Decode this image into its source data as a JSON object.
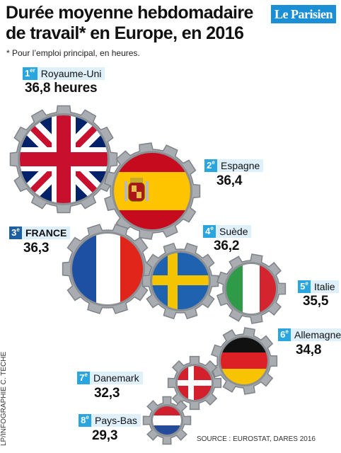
{
  "header": {
    "title": "Durée moyenne hebdomadaire de travail* en Europe, en 2016",
    "subtitle": "* Pour l’emploi principal, en heures.",
    "logo": "Le Parisien"
  },
  "countries": [
    {
      "rank_num": "1",
      "rank_sup": "er",
      "name": "Royaume-Uni",
      "value": "36,8 heures",
      "hours": 36.8,
      "flag": "uk-flag"
    },
    {
      "rank_num": "2",
      "rank_sup": "e",
      "name": "Espagne",
      "value": "36,4",
      "hours": 36.4,
      "flag": "spain-flag"
    },
    {
      "rank_num": "3",
      "rank_sup": "e",
      "name": "FRANCE",
      "value": "36,3",
      "hours": 36.3,
      "flag": "france-flag"
    },
    {
      "rank_num": "4",
      "rank_sup": "e",
      "name": "Suède",
      "value": "36,2",
      "hours": 36.2,
      "flag": "sweden-flag"
    },
    {
      "rank_num": "5",
      "rank_sup": "e",
      "name": "Italie",
      "value": "35,5",
      "hours": 35.5,
      "flag": "italy-flag"
    },
    {
      "rank_num": "6",
      "rank_sup": "e",
      "name": "Allemagne",
      "value": "34,8",
      "hours": 34.8,
      "flag": "germany-flag"
    },
    {
      "rank_num": "7",
      "rank_sup": "e",
      "name": "Danemark",
      "value": "32,3",
      "hours": 32.3,
      "flag": "denmark-flag"
    },
    {
      "rank_num": "8",
      "rank_sup": "e",
      "name": "Pays-Bas",
      "value": "29,3",
      "hours": 29.3,
      "flag": "netherlands-flag"
    }
  ],
  "footer": {
    "credit": "LP/INFOGRAPHIE C. TÊCHE",
    "source": "SOURCE : EUROSTAT, DARES 2016"
  },
  "colors": {
    "badge": "#29a6e0",
    "badge_france": "#1d5fa0",
    "label_bg": "#dff0fb",
    "gear": "#a9adb1",
    "gear_edge": "#7e8388"
  }
}
